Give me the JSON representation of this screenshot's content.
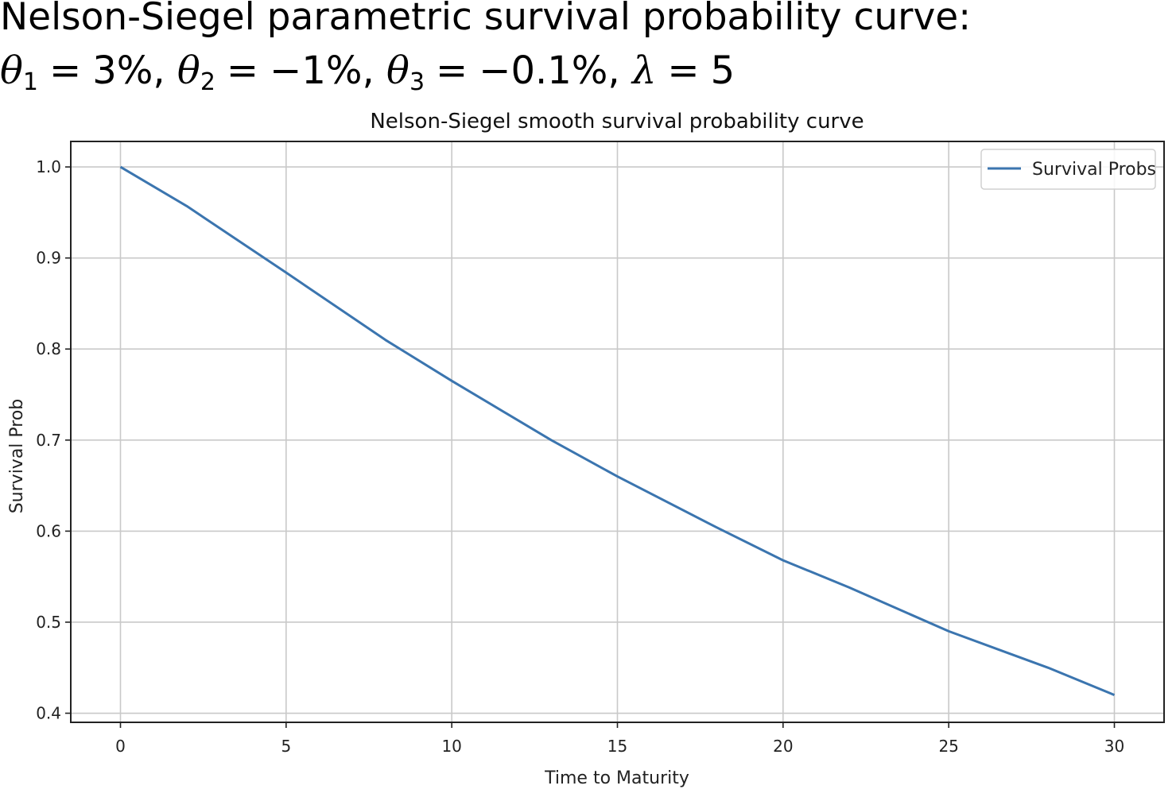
{
  "slide": {
    "title": "Nelson-Siegel parametric survival probability curve:",
    "params": {
      "theta1_sym": "θ",
      "theta1_sub": "1",
      "theta1_val": "3%",
      "theta2_sym": "θ",
      "theta2_sub": "2",
      "theta2_val": "−1%",
      "theta3_sym": "θ",
      "theta3_sub": "3",
      "theta3_val": "−0.1%",
      "lambda_sym": "λ",
      "lambda_val": "5",
      "equals": "=",
      "comma": ","
    }
  },
  "chart_data": {
    "type": "line",
    "title": "Nelson-Siegel smooth survival probability curve",
    "xlabel": "Time to Maturity",
    "ylabel": "Survival Prob",
    "xlim": [
      -1.5,
      31.5
    ],
    "ylim": [
      0.39,
      1.028
    ],
    "xticks": [
      0,
      5,
      10,
      15,
      20,
      25,
      30
    ],
    "yticks": [
      0.4,
      0.5,
      0.6,
      0.7,
      0.8,
      0.9,
      1.0
    ],
    "xtick_labels": [
      "0",
      "5",
      "10",
      "15",
      "20",
      "25",
      "30"
    ],
    "ytick_labels": [
      "0.4",
      "0.5",
      "0.6",
      "0.7",
      "0.8",
      "0.9",
      "1.0"
    ],
    "grid": true,
    "legend_position": "upper right",
    "series": [
      {
        "name": "Survival Probs",
        "color": "#3b75af",
        "x": [
          0,
          2,
          5,
          8,
          10,
          13,
          15,
          18,
          20,
          22,
          25,
          28,
          30
        ],
        "y": [
          1.0,
          0.957,
          0.884,
          0.81,
          0.765,
          0.7,
          0.66,
          0.604,
          0.568,
          0.538,
          0.49,
          0.45,
          0.42
        ]
      }
    ]
  }
}
